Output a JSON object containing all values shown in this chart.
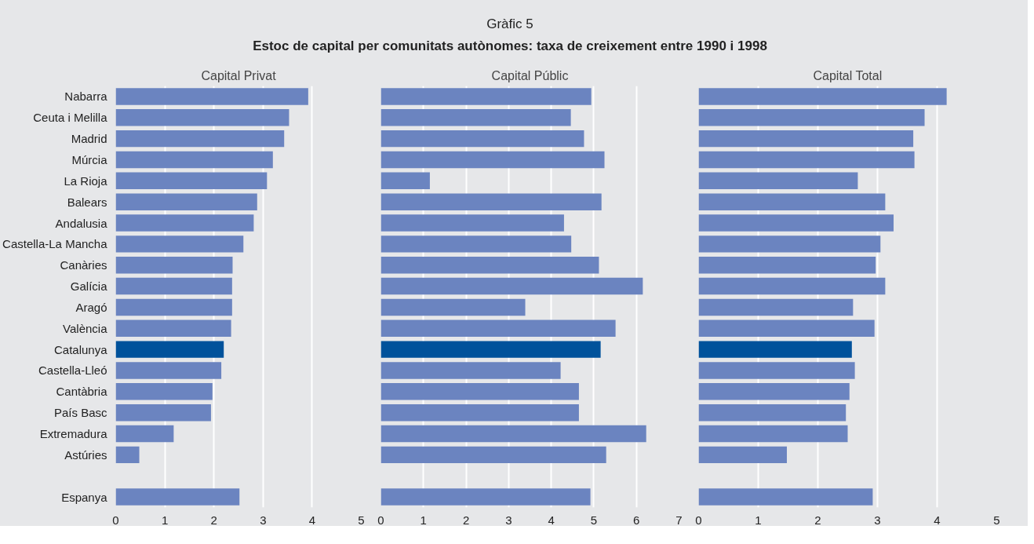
{
  "chart_data": [
    {
      "type": "other",
      "title": "Gràfic 5",
      "subtitle": "Estoc de capital per comunitats autònomes: taxa de creixement entre 1990 i 1998"
    },
    {
      "type": "bar",
      "orientation": "horizontal",
      "title": "Capital Privat",
      "categories": [
        "Nabarra",
        "Ceuta i Melilla",
        "Madrid",
        "Múrcia",
        "La Rioja",
        "Balears",
        "Andalusia",
        "Castella-La Mancha",
        "Canàries",
        "Galícia",
        "Aragó",
        "València",
        "Catalunya",
        "Castella-Lleó",
        "Cantàbria",
        "País Basc",
        "Extremadura",
        "Astúries",
        null,
        "Espanya"
      ],
      "values": [
        3.92,
        3.53,
        3.43,
        3.2,
        3.08,
        2.88,
        2.81,
        2.6,
        2.38,
        2.37,
        2.37,
        2.35,
        2.2,
        2.15,
        1.97,
        1.94,
        1.18,
        0.48,
        null,
        2.52
      ],
      "colors": [
        "#6b84c0",
        "#6b84c0",
        "#6b84c0",
        "#6b84c0",
        "#6b84c0",
        "#6b84c0",
        "#6b84c0",
        "#6b84c0",
        "#6b84c0",
        "#6b84c0",
        "#6b84c0",
        "#6b84c0",
        "#00529b",
        "#6b84c0",
        "#6b84c0",
        "#6b84c0",
        "#6b84c0",
        "#6b84c0",
        "#6b84c0",
        "#6b84c0"
      ],
      "xlim": [
        0,
        5
      ],
      "xticks": [
        0,
        1,
        2,
        3,
        4,
        5
      ],
      "grid": "x"
    },
    {
      "type": "bar",
      "orientation": "horizontal",
      "title": "Capital Públic",
      "categories": [
        null,
        null,
        null,
        null,
        null,
        null,
        null,
        null,
        null,
        null,
        null,
        null,
        null,
        null,
        null,
        null,
        null,
        null,
        null,
        null
      ],
      "values": [
        4.94,
        4.46,
        4.77,
        5.25,
        1.15,
        5.18,
        4.3,
        4.47,
        5.12,
        6.15,
        3.39,
        5.51,
        5.16,
        4.22,
        4.65,
        4.65,
        6.23,
        5.29,
        null,
        4.92
      ],
      "colors": [
        "#6b84c0",
        "#6b84c0",
        "#6b84c0",
        "#6b84c0",
        "#6b84c0",
        "#6b84c0",
        "#6b84c0",
        "#6b84c0",
        "#6b84c0",
        "#6b84c0",
        "#6b84c0",
        "#6b84c0",
        "#00529b",
        "#6b84c0",
        "#6b84c0",
        "#6b84c0",
        "#6b84c0",
        "#6b84c0",
        "#6b84c0",
        "#6b84c0"
      ],
      "xlim": [
        0,
        7
      ],
      "xticks": [
        0,
        1,
        2,
        3,
        4,
        5,
        6,
        7
      ],
      "grid": "x",
      "tick_labels": "x"
    },
    {
      "type": "bar",
      "orientation": "horizontal",
      "title": "Capital Total",
      "categories": [
        null,
        null,
        null,
        null,
        null,
        null,
        null,
        null,
        null,
        null,
        null,
        null,
        null,
        null,
        null,
        null,
        null,
        null,
        null,
        null
      ],
      "values": [
        4.16,
        3.79,
        3.6,
        3.62,
        2.67,
        3.13,
        3.27,
        3.05,
        2.97,
        3.13,
        2.59,
        2.95,
        2.57,
        2.62,
        2.53,
        2.47,
        2.5,
        1.48,
        null,
        2.92
      ],
      "colors": [
        "#6b84c0",
        "#6b84c0",
        "#6b84c0",
        "#6b84c0",
        "#6b84c0",
        "#6b84c0",
        "#6b84c0",
        "#6b84c0",
        "#6b84c0",
        "#6b84c0",
        "#6b84c0",
        "#6b84c0",
        "#00529b",
        "#6b84c0",
        "#6b84c0",
        "#6b84c0",
        "#6b84c0",
        "#6b84c0",
        "#6b84c0",
        "#6b84c0"
      ],
      "xlim": [
        0,
        5
      ],
      "xticks": [
        0,
        1,
        2,
        3,
        4,
        5
      ],
      "grid": "x",
      "tick_labels": "x"
    }
  ]
}
